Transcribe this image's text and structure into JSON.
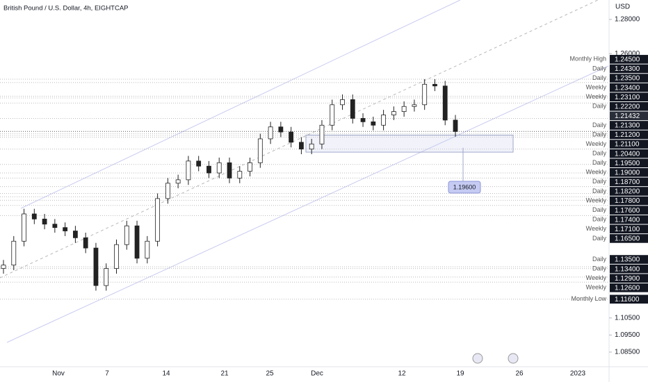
{
  "chart_data": {
    "type": "candlestick",
    "title": "British Pound / U.S. Dollar, 4h, EIGHTCAP",
    "currency": "USD",
    "ylim": [
      1.0756,
      1.2914
    ],
    "yticks": [
      {
        "value": 1.28,
        "label": "1.28000"
      },
      {
        "value": 1.26,
        "label": "1.26000"
      },
      {
        "value": 1.105,
        "label": "1.10500"
      },
      {
        "value": 1.095,
        "label": "1.09500"
      },
      {
        "value": 1.085,
        "label": "1.08500"
      }
    ],
    "x_labels": [
      "Nov",
      "7",
      "14",
      "21",
      "25",
      "Dec",
      "12",
      "19",
      "26",
      "2023"
    ],
    "color_up": "#ffffff",
    "color_down": "#222222",
    "open": [
      1.134,
      1.136,
      1.15,
      1.166,
      1.163,
      1.16,
      1.158,
      1.156,
      1.152,
      1.146,
      1.124,
      1.134,
      1.148,
      1.159,
      1.14,
      1.15,
      1.175,
      1.184,
      1.186,
      1.197,
      1.194,
      1.19,
      1.196,
      1.187,
      1.191,
      1.196,
      1.21,
      1.217,
      1.214,
      1.208,
      1.204,
      1.207,
      1.218,
      1.23,
      1.233,
      1.222,
      1.22,
      1.218,
      1.224,
      1.226,
      1.229,
      1.23,
      1.242,
      1.241,
      1.221
    ],
    "high": [
      1.139,
      1.153,
      1.169,
      1.169,
      1.166,
      1.163,
      1.161,
      1.159,
      1.155,
      1.149,
      1.137,
      1.151,
      1.162,
      1.162,
      1.153,
      1.178,
      1.187,
      1.189,
      1.2,
      1.2,
      1.197,
      1.199,
      1.199,
      1.194,
      1.199,
      1.213,
      1.22,
      1.22,
      1.217,
      1.211,
      1.21,
      1.221,
      1.233,
      1.236,
      1.236,
      1.225,
      1.223,
      1.227,
      1.229,
      1.232,
      1.233,
      1.245,
      1.245,
      1.244,
      1.224
    ],
    "low": [
      1.131,
      1.133,
      1.147,
      1.16,
      1.157,
      1.155,
      1.153,
      1.149,
      1.143,
      1.121,
      1.121,
      1.131,
      1.145,
      1.137,
      1.137,
      1.147,
      1.172,
      1.181,
      1.183,
      1.191,
      1.187,
      1.187,
      1.184,
      1.184,
      1.188,
      1.193,
      1.207,
      1.211,
      1.205,
      1.201,
      1.201,
      1.204,
      1.215,
      1.227,
      1.219,
      1.217,
      1.215,
      1.215,
      1.221,
      1.223,
      1.226,
      1.227,
      1.238,
      1.218,
      1.2113
    ],
    "close": [
      1.136,
      1.15,
      1.166,
      1.163,
      1.16,
      1.158,
      1.156,
      1.152,
      1.146,
      1.124,
      1.134,
      1.148,
      1.159,
      1.14,
      1.15,
      1.175,
      1.184,
      1.186,
      1.197,
      1.194,
      1.19,
      1.196,
      1.187,
      1.191,
      1.196,
      1.21,
      1.217,
      1.214,
      1.208,
      1.204,
      1.207,
      1.218,
      1.23,
      1.233,
      1.222,
      1.22,
      1.218,
      1.224,
      1.226,
      1.229,
      1.23,
      1.242,
      1.241,
      1.221,
      1.2143
    ],
    "last_price": {
      "value": 1.21432,
      "label": "1.21432"
    },
    "zone": {
      "top": 1.2122,
      "bottom": 1.2022
    },
    "target": {
      "value": 1.196,
      "label": "1.19600"
    },
    "levels": [
      {
        "value": 1.245,
        "label": "1.24500",
        "note": "Monthly High"
      },
      {
        "value": 1.243,
        "label": "1.24300",
        "note": "Daily"
      },
      {
        "value": 1.235,
        "label": "1.23500",
        "note": "Daily"
      },
      {
        "value": 1.234,
        "label": "1.23400",
        "note": "Weekly"
      },
      {
        "value": 1.231,
        "label": "1.23100",
        "note": "Weekly"
      },
      {
        "value": 1.222,
        "label": "1.22200",
        "note": "Daily"
      },
      {
        "value": 1.213,
        "label": "1.21300",
        "note": "Daily"
      },
      {
        "value": 1.212,
        "label": "1.21200",
        "note": "Daily"
      },
      {
        "value": 1.211,
        "label": "1.21100",
        "note": "Weekly"
      },
      {
        "value": 1.204,
        "label": "1.20400",
        "note": "Daily"
      },
      {
        "value": 1.195,
        "label": "1.19500",
        "note": "Daily"
      },
      {
        "value": 1.19,
        "label": "1.19000",
        "note": "Weekly"
      },
      {
        "value": 1.187,
        "label": "1.18700",
        "note": "Daily"
      },
      {
        "value": 1.182,
        "label": "1.18200",
        "note": "Daily"
      },
      {
        "value": 1.178,
        "label": "1.17800",
        "note": "Weekly"
      },
      {
        "value": 1.176,
        "label": "1.17600",
        "note": "Daily"
      },
      {
        "value": 1.174,
        "label": "1.17400",
        "note": "Daily"
      },
      {
        "value": 1.171,
        "label": "1.17100",
        "note": "Weekly"
      },
      {
        "value": 1.165,
        "label": "1.16500",
        "note": "Daily"
      },
      {
        "value": 1.135,
        "label": "1.13500",
        "note": "Daily"
      },
      {
        "value": 1.134,
        "label": "1.13400",
        "note": "Daily"
      },
      {
        "value": 1.129,
        "label": "1.12900",
        "note": "Weekly"
      },
      {
        "value": 1.126,
        "label": "1.12600",
        "note": "Weekly"
      },
      {
        "value": 1.116,
        "label": "1.11600",
        "note": "Monthly Low"
      }
    ]
  }
}
